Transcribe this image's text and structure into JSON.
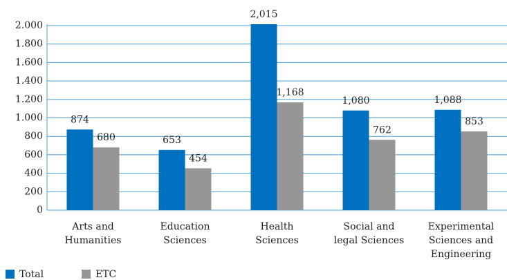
{
  "chart_data": {
    "type": "bar",
    "categories": [
      [
        "Arts and",
        "Humanities"
      ],
      [
        "Education",
        "Sciences"
      ],
      [
        "Health",
        "Sciences"
      ],
      [
        "Social and",
        "legal Sciences"
      ],
      [
        "Experimental",
        "Sciences and",
        "Engineering"
      ]
    ],
    "series": [
      {
        "name": "Total",
        "color": "#0070c0",
        "values": [
          874,
          653,
          2015,
          1080,
          1088
        ],
        "value_labels": [
          "874",
          "653",
          "2,015",
          "1,080",
          "1,088"
        ]
      },
      {
        "name": "ETC",
        "color": "#969696",
        "values": [
          680,
          454,
          1168,
          762,
          853
        ],
        "value_labels": [
          "680",
          "454",
          "1,168",
          "762",
          "853"
        ]
      }
    ],
    "ylim": [
      0,
      2000
    ],
    "yticks": [
      0,
      200,
      400,
      600,
      800,
      {
        "value": 1000,
        "label": "1.000"
      },
      {
        "value": 1200,
        "label": "1.200"
      },
      {
        "value": 1400,
        "label": "1.400"
      },
      {
        "value": 1600,
        "label": "1.600"
      },
      {
        "value": 1800,
        "label": "1.800"
      },
      {
        "value": 2000,
        "label": "2.000"
      }
    ],
    "grid": true,
    "legend": "bottom-left"
  }
}
